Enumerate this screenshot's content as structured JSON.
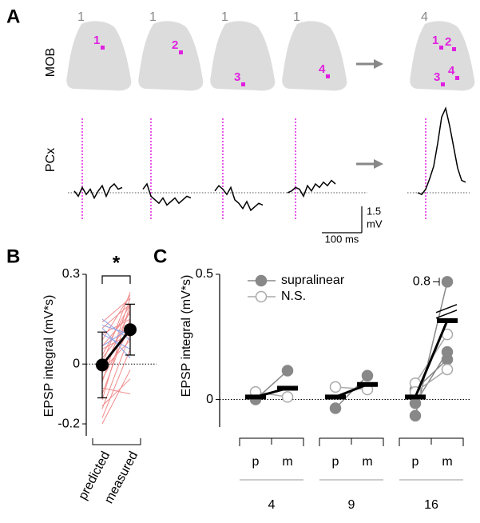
{
  "chart_data": [
    {
      "type": "traces",
      "panel": "A",
      "row_labels": [
        "MOB",
        "PCx"
      ],
      "stim_counts": [
        1,
        1,
        1,
        1,
        4
      ],
      "spots": [
        [
          "1"
        ],
        [
          "2"
        ],
        [
          "3"
        ],
        [
          "4"
        ],
        [
          "1",
          "2",
          "3",
          "4"
        ]
      ],
      "stim_color": "#e020e0",
      "x": [
        -20,
        -10,
        0,
        10,
        20,
        30,
        40,
        50,
        60,
        70,
        80,
        90,
        100
      ],
      "series": [
        {
          "color": "#000000",
          "values": [
            0.1,
            -0.2,
            0.3,
            -0.1,
            0.2,
            -0.3,
            0.1,
            0.4,
            -0.2,
            0.3,
            0.5,
            0.2,
            0.3
          ]
        },
        {
          "color": "#000000",
          "values": [
            0.2,
            0.5,
            -0.2,
            -0.4,
            -0.6,
            -0.3,
            -0.7,
            -0.5,
            -0.3,
            -0.6,
            -0.4,
            -0.2,
            -0.3
          ]
        },
        {
          "color": "#000000",
          "values": [
            0.1,
            0.4,
            0.2,
            -0.1,
            0.3,
            -0.4,
            -0.6,
            -0.9,
            -0.5,
            -1.0,
            -0.8,
            -0.6,
            -0.7
          ]
        },
        {
          "color": "#000000",
          "values": [
            0.0,
            0.1,
            0.3,
            0.2,
            -0.2,
            0.4,
            0.1,
            0.5,
            0.3,
            0.6,
            0.4,
            0.7,
            0.5
          ]
        },
        {
          "color": "#000000",
          "values": [
            0.0,
            -0.1,
            0.2,
            0.8,
            1.5,
            2.8,
            4.3,
            4.8,
            3.8,
            2.6,
            1.4,
            0.7,
            0.6
          ]
        }
      ],
      "scalebar": {
        "y": {
          "value": 1.5,
          "unit": "mV"
        },
        "x": {
          "value": 100,
          "label": "100 ms"
        }
      }
    },
    {
      "type": "paired",
      "panel": "B",
      "ylabel": "EPSP integral (mV*s)",
      "categories": [
        "predicted",
        "measured"
      ],
      "significance": "*",
      "ylim": [
        -0.24,
        0.3
      ],
      "yticks": [
        -0.2,
        0,
        0.3
      ],
      "zero_line": true,
      "paired_lines": [
        {
          "color": "#f08c8c",
          "values": [
            [
              -0.2,
              -0.02
            ],
            [
              -0.18,
              0.05
            ],
            [
              -0.15,
              0.1
            ],
            [
              -0.12,
              0.2
            ],
            [
              -0.1,
              0.15
            ],
            [
              -0.08,
              -0.1
            ],
            [
              -0.06,
              0.22
            ],
            [
              -0.05,
              0.12
            ],
            [
              -0.03,
              0.18
            ],
            [
              -0.02,
              0.08
            ],
            [
              0,
              0.24
            ],
            [
              0.02,
              0.14
            ],
            [
              0.03,
              0.2
            ],
            [
              0.05,
              0.1
            ],
            [
              0.06,
              0.17
            ],
            [
              0.08,
              0.23
            ],
            [
              0.1,
              0.15
            ],
            [
              0.12,
              0.2
            ],
            [
              -0.14,
              -0.05
            ],
            [
              0.14,
              0.22
            ]
          ]
        },
        {
          "color": "#8aa0e8",
          "values": [
            [
              0.15,
              0.08
            ],
            [
              0.12,
              0.02
            ],
            [
              0.1,
              0.05
            ],
            [
              0.06,
              0.12
            ],
            [
              0.13,
              0.1
            ]
          ]
        }
      ],
      "means": [
        -0.003,
        0.115
      ],
      "errors": [
        0.11,
        0.085
      ],
      "mean_color": "#000000"
    },
    {
      "type": "grouped_paired",
      "panel": "C",
      "ylabel": "EPSP integral (mV*s)",
      "groups": [
        "4",
        "9",
        "16"
      ],
      "subcategories": [
        "p",
        "m"
      ],
      "ylim": [
        -0.11,
        0.5
      ],
      "yticks": [
        0,
        0.5
      ],
      "zero_line": true,
      "axis_break": 0.36,
      "break_tick": 0.8,
      "series": [
        {
          "name": "supralinear",
          "color": "#888888",
          "filled": true,
          "values": [
            [
              [
                0.0,
                0.115
              ]
            ],
            [
              [
                -0.035,
                0.095
              ]
            ],
            [
              [
                -0.065,
                0.8
              ],
              [
                -0.015,
                0.19
              ],
              [
                0.04,
                0.16
              ]
            ]
          ]
        },
        {
          "name": "N.S.",
          "color": "#aaaaaa",
          "filled": false,
          "values": [
            [
              [
                0.03,
                0.01
              ]
            ],
            [
              [
                0.05,
                0.04
              ]
            ],
            [
              [
                0.065,
                0.26
              ],
              [
                0.03,
                0.12
              ]
            ]
          ]
        }
      ],
      "means": [
        [
          0.01,
          0.045
        ],
        [
          0.01,
          0.06
        ],
        [
          0.01,
          0.315
        ]
      ],
      "mean_color": "#000000"
    }
  ]
}
